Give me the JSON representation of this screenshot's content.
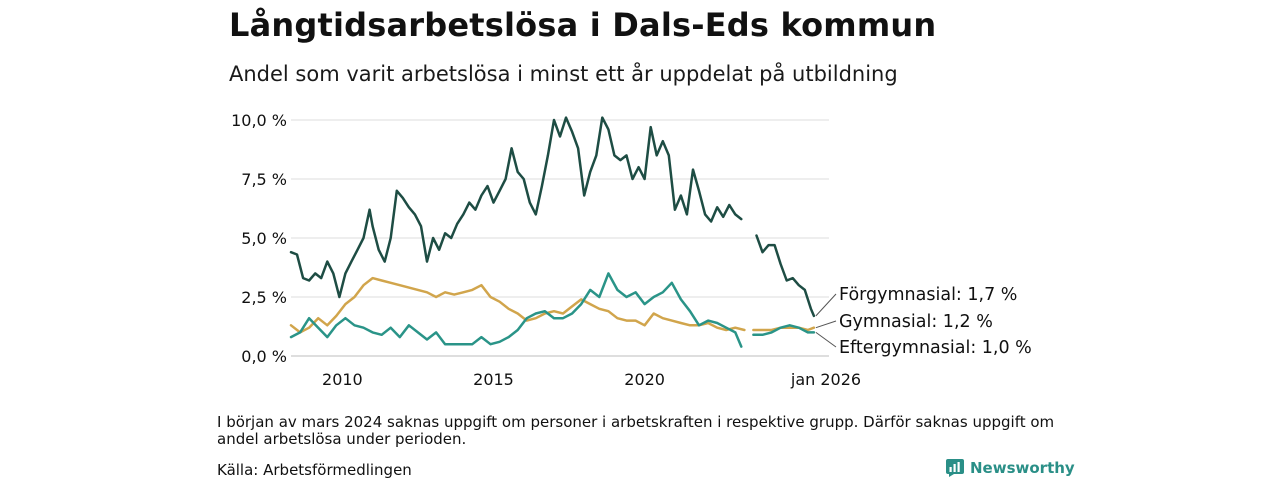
{
  "chart_data": {
    "type": "line",
    "title": "Långtidsarbetslösa i Dals-Eds kommun",
    "subtitle": "Andel som varit arbetslösa i minst ett år uppdelat på utbildning",
    "xlabel": "",
    "ylabel": "",
    "xlim": [
      2008.3,
      2026.1
    ],
    "ylim": [
      0,
      10
    ],
    "x_ticks": [
      {
        "value": 2010,
        "label": "2010"
      },
      {
        "value": 2015,
        "label": "2015"
      },
      {
        "value": 2020,
        "label": "2020"
      },
      {
        "value": 2026.0,
        "label": "jan 2026"
      }
    ],
    "y_ticks": [
      {
        "value": 0,
        "label": "0,0 %"
      },
      {
        "value": 2.5,
        "label": "2,5 %"
      },
      {
        "value": 5,
        "label": "5,0 %"
      },
      {
        "value": 7.5,
        "label": "7,5 %"
      },
      {
        "value": 10,
        "label": "10,0 %"
      }
    ],
    "series": [
      {
        "name": "Förgymnasial",
        "end_label": "Förgymnasial: 1,7 %",
        "color": "#1e4d44",
        "points": [
          [
            2008.3,
            4.4
          ],
          [
            2008.5,
            4.3
          ],
          [
            2008.7,
            3.3
          ],
          [
            2008.9,
            3.2
          ],
          [
            2009.1,
            3.5
          ],
          [
            2009.3,
            3.3
          ],
          [
            2009.5,
            4.0
          ],
          [
            2009.7,
            3.5
          ],
          [
            2009.9,
            2.5
          ],
          [
            2010.1,
            3.5
          ],
          [
            2010.3,
            4.0
          ],
          [
            2010.5,
            4.5
          ],
          [
            2010.7,
            5.0
          ],
          [
            2010.9,
            6.2
          ],
          [
            2011.0,
            5.5
          ],
          [
            2011.2,
            4.5
          ],
          [
            2011.4,
            4.0
          ],
          [
            2011.6,
            5.0
          ],
          [
            2011.8,
            7.0
          ],
          [
            2012.0,
            6.7
          ],
          [
            2012.2,
            6.3
          ],
          [
            2012.4,
            6.0
          ],
          [
            2012.6,
            5.5
          ],
          [
            2012.8,
            4.0
          ],
          [
            2013.0,
            5.0
          ],
          [
            2013.2,
            4.5
          ],
          [
            2013.4,
            5.2
          ],
          [
            2013.6,
            5.0
          ],
          [
            2013.8,
            5.6
          ],
          [
            2014.0,
            6.0
          ],
          [
            2014.2,
            6.5
          ],
          [
            2014.4,
            6.2
          ],
          [
            2014.6,
            6.8
          ],
          [
            2014.8,
            7.2
          ],
          [
            2015.0,
            6.5
          ],
          [
            2015.2,
            7.0
          ],
          [
            2015.4,
            7.5
          ],
          [
            2015.6,
            8.8
          ],
          [
            2015.8,
            7.8
          ],
          [
            2016.0,
            7.5
          ],
          [
            2016.2,
            6.5
          ],
          [
            2016.4,
            6.0
          ],
          [
            2016.6,
            7.2
          ],
          [
            2016.8,
            8.5
          ],
          [
            2017.0,
            10.0
          ],
          [
            2017.2,
            9.3
          ],
          [
            2017.4,
            10.1
          ],
          [
            2017.6,
            9.5
          ],
          [
            2017.8,
            8.8
          ],
          [
            2018.0,
            6.8
          ],
          [
            2018.2,
            7.8
          ],
          [
            2018.4,
            8.5
          ],
          [
            2018.6,
            10.1
          ],
          [
            2018.8,
            9.6
          ],
          [
            2019.0,
            8.5
          ],
          [
            2019.2,
            8.3
          ],
          [
            2019.4,
            8.5
          ],
          [
            2019.6,
            7.5
          ],
          [
            2019.8,
            8.0
          ],
          [
            2020.0,
            7.5
          ],
          [
            2020.2,
            9.7
          ],
          [
            2020.4,
            8.5
          ],
          [
            2020.6,
            9.1
          ],
          [
            2020.8,
            8.5
          ],
          [
            2021.0,
            6.2
          ],
          [
            2021.2,
            6.8
          ],
          [
            2021.4,
            6.0
          ],
          [
            2021.6,
            7.9
          ],
          [
            2021.8,
            7.0
          ],
          [
            2022.0,
            6.0
          ],
          [
            2022.2,
            5.7
          ],
          [
            2022.4,
            6.3
          ],
          [
            2022.6,
            5.9
          ],
          [
            2022.8,
            6.4
          ],
          [
            2023.0,
            6.0
          ],
          [
            2023.2,
            5.8
          ],
          null,
          [
            2023.7,
            5.1
          ],
          [
            2023.9,
            4.4
          ],
          [
            2024.1,
            4.7
          ],
          [
            2024.3,
            4.7
          ],
          [
            2024.5,
            3.9
          ],
          [
            2024.7,
            3.2
          ],
          [
            2024.9,
            3.3
          ],
          [
            2025.1,
            3.0
          ],
          [
            2025.3,
            2.8
          ],
          [
            2025.5,
            2.0
          ],
          [
            2025.6,
            1.7
          ]
        ]
      },
      {
        "name": "Gymnasial",
        "end_label": "Gymnasial: 1,2 %",
        "color": "#d1a54c",
        "points": [
          [
            2008.3,
            1.3
          ],
          [
            2008.6,
            1.0
          ],
          [
            2008.9,
            1.2
          ],
          [
            2009.2,
            1.6
          ],
          [
            2009.5,
            1.3
          ],
          [
            2009.8,
            1.7
          ],
          [
            2010.1,
            2.2
          ],
          [
            2010.4,
            2.5
          ],
          [
            2010.7,
            3.0
          ],
          [
            2011.0,
            3.3
          ],
          [
            2011.3,
            3.2
          ],
          [
            2011.6,
            3.1
          ],
          [
            2011.9,
            3.0
          ],
          [
            2012.2,
            2.9
          ],
          [
            2012.5,
            2.8
          ],
          [
            2012.8,
            2.7
          ],
          [
            2013.1,
            2.5
          ],
          [
            2013.4,
            2.7
          ],
          [
            2013.7,
            2.6
          ],
          [
            2014.0,
            2.7
          ],
          [
            2014.3,
            2.8
          ],
          [
            2014.6,
            3.0
          ],
          [
            2014.9,
            2.5
          ],
          [
            2015.2,
            2.3
          ],
          [
            2015.5,
            2.0
          ],
          [
            2015.8,
            1.8
          ],
          [
            2016.1,
            1.5
          ],
          [
            2016.4,
            1.6
          ],
          [
            2016.7,
            1.8
          ],
          [
            2017.0,
            1.9
          ],
          [
            2017.3,
            1.8
          ],
          [
            2017.6,
            2.1
          ],
          [
            2017.9,
            2.4
          ],
          [
            2018.2,
            2.2
          ],
          [
            2018.5,
            2.0
          ],
          [
            2018.8,
            1.9
          ],
          [
            2019.1,
            1.6
          ],
          [
            2019.4,
            1.5
          ],
          [
            2019.7,
            1.5
          ],
          [
            2020.0,
            1.3
          ],
          [
            2020.3,
            1.8
          ],
          [
            2020.6,
            1.6
          ],
          [
            2020.9,
            1.5
          ],
          [
            2021.2,
            1.4
          ],
          [
            2021.5,
            1.3
          ],
          [
            2021.8,
            1.3
          ],
          [
            2022.1,
            1.4
          ],
          [
            2022.4,
            1.2
          ],
          [
            2022.7,
            1.1
          ],
          [
            2023.0,
            1.2
          ],
          [
            2023.3,
            1.1
          ],
          null,
          [
            2023.6,
            1.1
          ],
          [
            2023.9,
            1.1
          ],
          [
            2024.2,
            1.1
          ],
          [
            2024.5,
            1.2
          ],
          [
            2024.8,
            1.2
          ],
          [
            2025.1,
            1.2
          ],
          [
            2025.4,
            1.1
          ],
          [
            2025.6,
            1.2
          ]
        ]
      },
      {
        "name": "Eftergymnasial",
        "end_label": "Eftergymnasial: 1,0 %",
        "color": "#2a9488",
        "points": [
          [
            2008.3,
            0.8
          ],
          [
            2008.6,
            1.0
          ],
          [
            2008.9,
            1.6
          ],
          [
            2009.2,
            1.2
          ],
          [
            2009.5,
            0.8
          ],
          [
            2009.8,
            1.3
          ],
          [
            2010.1,
            1.6
          ],
          [
            2010.4,
            1.3
          ],
          [
            2010.7,
            1.2
          ],
          [
            2011.0,
            1.0
          ],
          [
            2011.3,
            0.9
          ],
          [
            2011.6,
            1.2
          ],
          [
            2011.9,
            0.8
          ],
          [
            2012.2,
            1.3
          ],
          [
            2012.5,
            1.0
          ],
          [
            2012.8,
            0.7
          ],
          [
            2013.1,
            1.0
          ],
          [
            2013.4,
            0.5
          ],
          [
            2013.7,
            0.5
          ],
          [
            2014.0,
            0.5
          ],
          [
            2014.3,
            0.5
          ],
          [
            2014.6,
            0.8
          ],
          [
            2014.9,
            0.5
          ],
          [
            2015.2,
            0.6
          ],
          [
            2015.5,
            0.8
          ],
          [
            2015.8,
            1.1
          ],
          [
            2016.1,
            1.6
          ],
          [
            2016.4,
            1.8
          ],
          [
            2016.7,
            1.9
          ],
          [
            2017.0,
            1.6
          ],
          [
            2017.3,
            1.6
          ],
          [
            2017.6,
            1.8
          ],
          [
            2017.9,
            2.2
          ],
          [
            2018.2,
            2.8
          ],
          [
            2018.5,
            2.5
          ],
          [
            2018.8,
            3.5
          ],
          [
            2019.1,
            2.8
          ],
          [
            2019.4,
            2.5
          ],
          [
            2019.7,
            2.7
          ],
          [
            2020.0,
            2.2
          ],
          [
            2020.3,
            2.5
          ],
          [
            2020.6,
            2.7
          ],
          [
            2020.9,
            3.1
          ],
          [
            2021.2,
            2.4
          ],
          [
            2021.5,
            1.9
          ],
          [
            2021.8,
            1.3
          ],
          [
            2022.1,
            1.5
          ],
          [
            2022.4,
            1.4
          ],
          [
            2022.7,
            1.2
          ],
          [
            2023.0,
            1.0
          ],
          [
            2023.2,
            0.4
          ],
          null,
          [
            2023.6,
            0.9
          ],
          [
            2023.9,
            0.9
          ],
          [
            2024.2,
            1.0
          ],
          [
            2024.5,
            1.2
          ],
          [
            2024.8,
            1.3
          ],
          [
            2025.1,
            1.2
          ],
          [
            2025.4,
            1.0
          ],
          [
            2025.6,
            1.0
          ]
        ]
      }
    ]
  },
  "note": "I början av mars 2024 saknas uppgift om personer i arbetskraften i respektive grupp. Därför saknas uppgift om andel arbetslösa under perioden.",
  "source": "Källa: Arbetsförmedlingen",
  "brand": {
    "name": "Newsworthy",
    "color": "#2a8f87"
  }
}
